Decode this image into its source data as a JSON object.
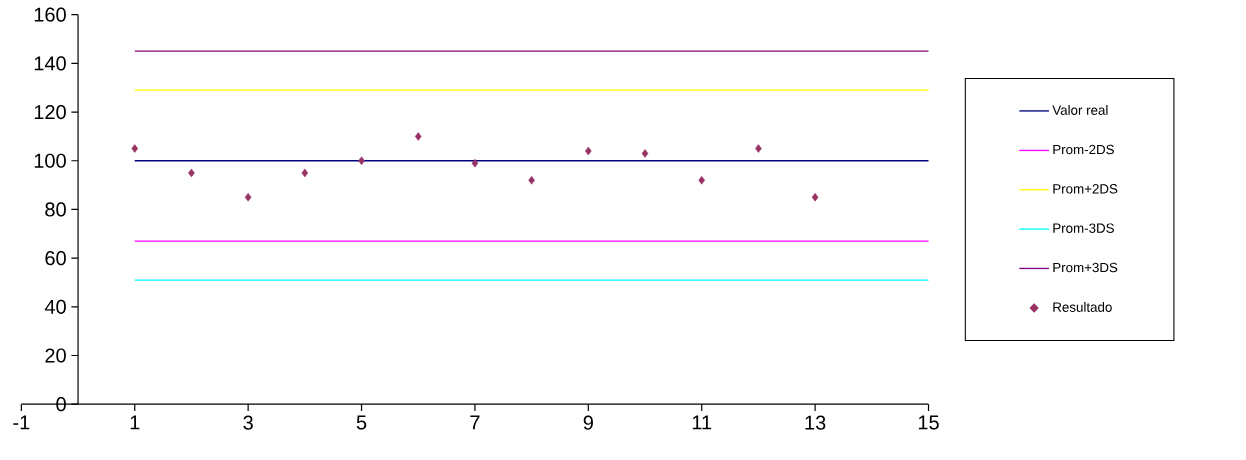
{
  "chart_data": {
    "type": "scatter",
    "xlim": [
      -1,
      15
    ],
    "ylim": [
      0,
      160
    ],
    "xticks": [
      -1,
      1,
      3,
      5,
      7,
      9,
      11,
      13,
      15
    ],
    "yticks": [
      0,
      20,
      40,
      60,
      80,
      100,
      120,
      140,
      160
    ],
    "grid": false,
    "legend": "right",
    "series": [
      {
        "name": "Valor real",
        "type": "line",
        "marker": "none",
        "color": "#000080",
        "x": [
          1,
          15
        ],
        "values": [
          100,
          100
        ]
      },
      {
        "name": "Prom-2DS",
        "type": "line",
        "marker": "none",
        "color": "#ff00ff",
        "x": [
          1,
          15
        ],
        "values": [
          67,
          67
        ]
      },
      {
        "name": "Prom+2DS",
        "type": "line",
        "marker": "none",
        "color": "#ffff00",
        "x": [
          1,
          15
        ],
        "values": [
          129,
          129
        ]
      },
      {
        "name": "Prom-3DS",
        "type": "line",
        "marker": "none",
        "color": "#00ffff",
        "x": [
          1,
          15
        ],
        "values": [
          51,
          51
        ]
      },
      {
        "name": "Prom+3DS",
        "type": "line",
        "marker": "none",
        "color": "#800080",
        "x": [
          1,
          15
        ],
        "values": [
          145,
          145
        ]
      },
      {
        "name": "Resultado",
        "marker": "diamond",
        "color": "#993366",
        "x": [
          1,
          2,
          3,
          4,
          5,
          6,
          7,
          8,
          9,
          10,
          11,
          12,
          13
        ],
        "values": [
          105,
          95,
          85,
          95,
          100,
          110,
          99,
          92,
          104,
          103,
          92,
          105,
          85
        ]
      }
    ]
  }
}
